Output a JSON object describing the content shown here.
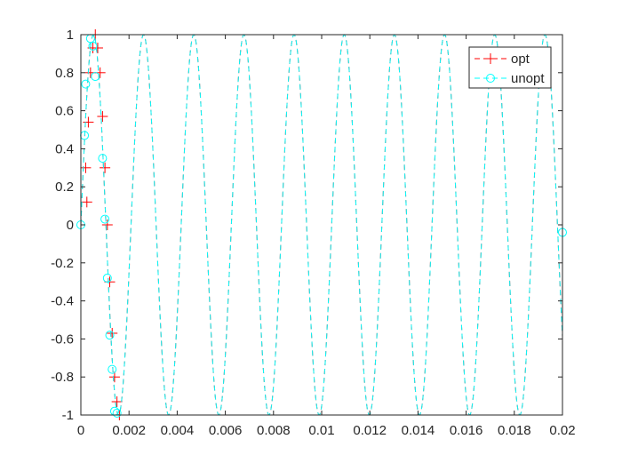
{
  "chart_data": {
    "type": "line",
    "title": "",
    "xlabel": "",
    "ylabel": "",
    "xlim": [
      0,
      0.02
    ],
    "ylim": [
      -1,
      1
    ],
    "xticks": [
      0,
      0.002,
      0.004,
      0.006,
      0.008,
      0.01,
      0.012,
      0.014,
      0.016,
      0.018,
      0.02
    ],
    "xtick_labels": [
      "0",
      "0.002",
      "0.004",
      "0.006",
      "0.008",
      "0.01",
      "0.012",
      "0.014",
      "0.016",
      "0.018",
      "0.02"
    ],
    "yticks": [
      -1,
      -0.8,
      -0.6,
      -0.4,
      -0.2,
      0,
      0.2,
      0.4,
      0.6,
      0.8,
      1
    ],
    "ytick_labels": [
      "-1",
      "-0.8",
      "-0.6",
      "-0.4",
      "-0.2",
      "0",
      "0.2",
      "0.4",
      "0.6",
      "0.8",
      "1"
    ],
    "grid": false,
    "box": true,
    "legend_position": "top-right",
    "series": [
      {
        "name": "opt",
        "color": "#ff0000",
        "marker": "plus",
        "line_style": "dashed",
        "frequency_hz": 480,
        "start_x": 0,
        "end_x": 0.02,
        "points": [
          {
            "x": 0.00025,
            "y": 0.12
          },
          {
            "x": 0.0002,
            "y": 0.3
          },
          {
            "x": 0.00031,
            "y": 0.54
          },
          {
            "x": 0.0004,
            "y": 0.8
          },
          {
            "x": 0.0005,
            "y": 0.93
          },
          {
            "x": 0.0006,
            "y": 1.0
          },
          {
            "x": 0.0007,
            "y": 0.93
          },
          {
            "x": 0.0008,
            "y": 0.8
          },
          {
            "x": 0.0009,
            "y": 0.57
          },
          {
            "x": 0.001,
            "y": 0.3
          },
          {
            "x": 0.0011,
            "y": 0.0
          },
          {
            "x": 0.0012,
            "y": -0.3
          },
          {
            "x": 0.0013,
            "y": -0.57
          },
          {
            "x": 0.0014,
            "y": -0.8
          },
          {
            "x": 0.0015,
            "y": -0.93
          },
          {
            "x": 0.0016,
            "y": -1.0
          }
        ]
      },
      {
        "name": "unopt",
        "color": "#00ffff",
        "marker": "circle",
        "line_style": "dashed",
        "frequency_hz": 480,
        "start_x": 0,
        "end_x": 0.02,
        "points": [
          {
            "x": 0.0,
            "y": 0.0
          },
          {
            "x": 0.00015,
            "y": 0.47
          },
          {
            "x": 0.0002,
            "y": 0.74
          },
          {
            "x": 0.0004,
            "y": 0.98
          },
          {
            "x": 0.0005,
            "y": 0.94
          },
          {
            "x": 0.0006,
            "y": 0.78
          },
          {
            "x": 0.0009,
            "y": 0.35
          },
          {
            "x": 0.001,
            "y": 0.03
          },
          {
            "x": 0.0011,
            "y": -0.28
          },
          {
            "x": 0.0012,
            "y": -0.58
          },
          {
            "x": 0.0013,
            "y": -0.76
          },
          {
            "x": 0.0014,
            "y": -0.98
          },
          {
            "x": 0.0015,
            "y": -0.99
          },
          {
            "x": 0.02,
            "y": -0.04
          }
        ]
      }
    ]
  }
}
